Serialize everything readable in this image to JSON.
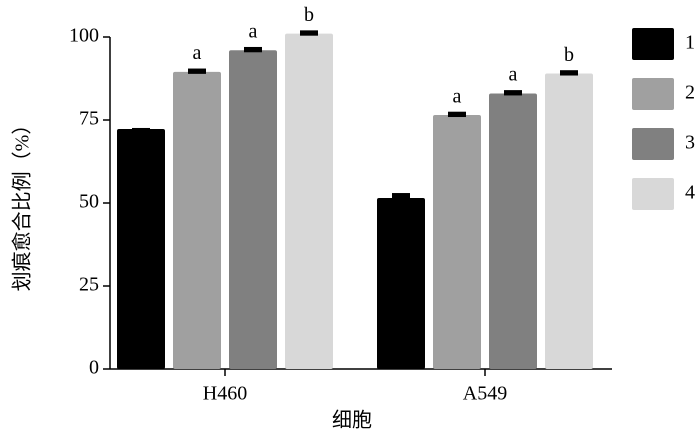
{
  "chart_data": {
    "type": "bar",
    "ylabel": "划痕愈合比例（%）",
    "xlabel": "细胞",
    "categories": [
      "H460",
      "A549"
    ],
    "series": [
      {
        "name": "1",
        "color": "#000000",
        "values": [
          72.3,
          51.5
        ],
        "errors": [
          0.3,
          1.5
        ]
      },
      {
        "name": "2",
        "color": "#a0a0a0",
        "values": [
          89.5,
          76.5
        ],
        "errors": [
          1,
          1
        ],
        "annotation": "a"
      },
      {
        "name": "3",
        "color": "#808080",
        "values": [
          96,
          83
        ],
        "errors": [
          1,
          1
        ],
        "annotation": "a"
      },
      {
        "name": "4",
        "color": "#d8d8d8",
        "values": [
          101,
          89
        ],
        "errors": [
          1,
          1
        ],
        "annotation": "b"
      }
    ],
    "ylim": [
      0,
      100
    ],
    "yticks": [
      0,
      25,
      50,
      75,
      100
    ]
  }
}
